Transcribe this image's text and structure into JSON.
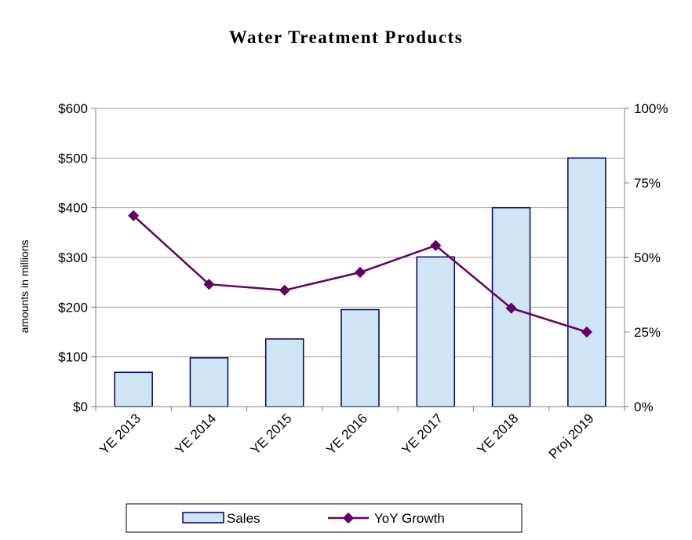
{
  "chart_data": {
    "type": "bar",
    "title": "Water Treatment Products",
    "xlabel": "",
    "ylabel": "amounts in millions",
    "y2label": "",
    "categories": [
      "YE 2013",
      "YE 2014",
      "YE 2015",
      "YE 2016",
      "YE 2017",
      "YE 2018",
      "Proj 2019"
    ],
    "series": [
      {
        "name": "Sales",
        "type": "bar",
        "axis": "left",
        "color": "#cfe4f4",
        "edge_color": "#000060",
        "values": [
          69,
          98,
          136,
          195,
          301,
          400,
          500
        ]
      },
      {
        "name": "YoY Growth",
        "type": "line",
        "axis": "right",
        "color": "#660066",
        "values": [
          64,
          41,
          39,
          45,
          54,
          33,
          25
        ]
      }
    ],
    "ylim": [
      0,
      600
    ],
    "y_ticks": [
      "$0",
      "$100",
      "$200",
      "$300",
      "$400",
      "$500",
      "$600"
    ],
    "y2lim": [
      0,
      100
    ],
    "y2_ticks": [
      "0%",
      "25%",
      "50%",
      "75%",
      "100%"
    ],
    "grid": true,
    "legend_position": "bottom"
  }
}
